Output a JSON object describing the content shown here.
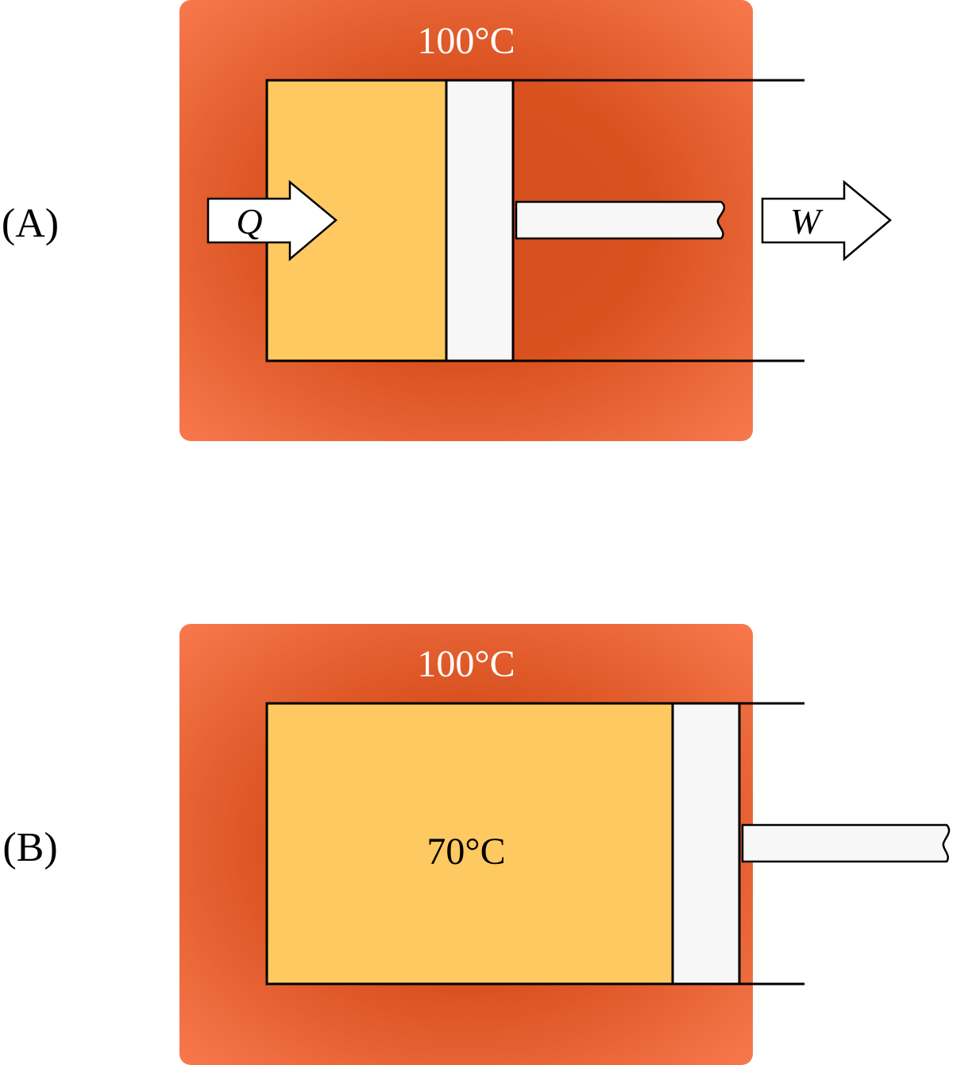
{
  "colors": {
    "reservoir_edge": "#f97a4f",
    "reservoir_center": "#d44f21",
    "gas": "#fec960",
    "piston": "#f7f7f7",
    "outline": "#000000",
    "background": "#ffffff"
  },
  "panel_a": {
    "label": "(A)",
    "reservoir_temp": "100°C",
    "heat_arrow_label": "Q",
    "work_arrow_label": "W"
  },
  "panel_b": {
    "label": "(B)",
    "reservoir_temp": "100°C",
    "gas_temp": "70°C"
  }
}
